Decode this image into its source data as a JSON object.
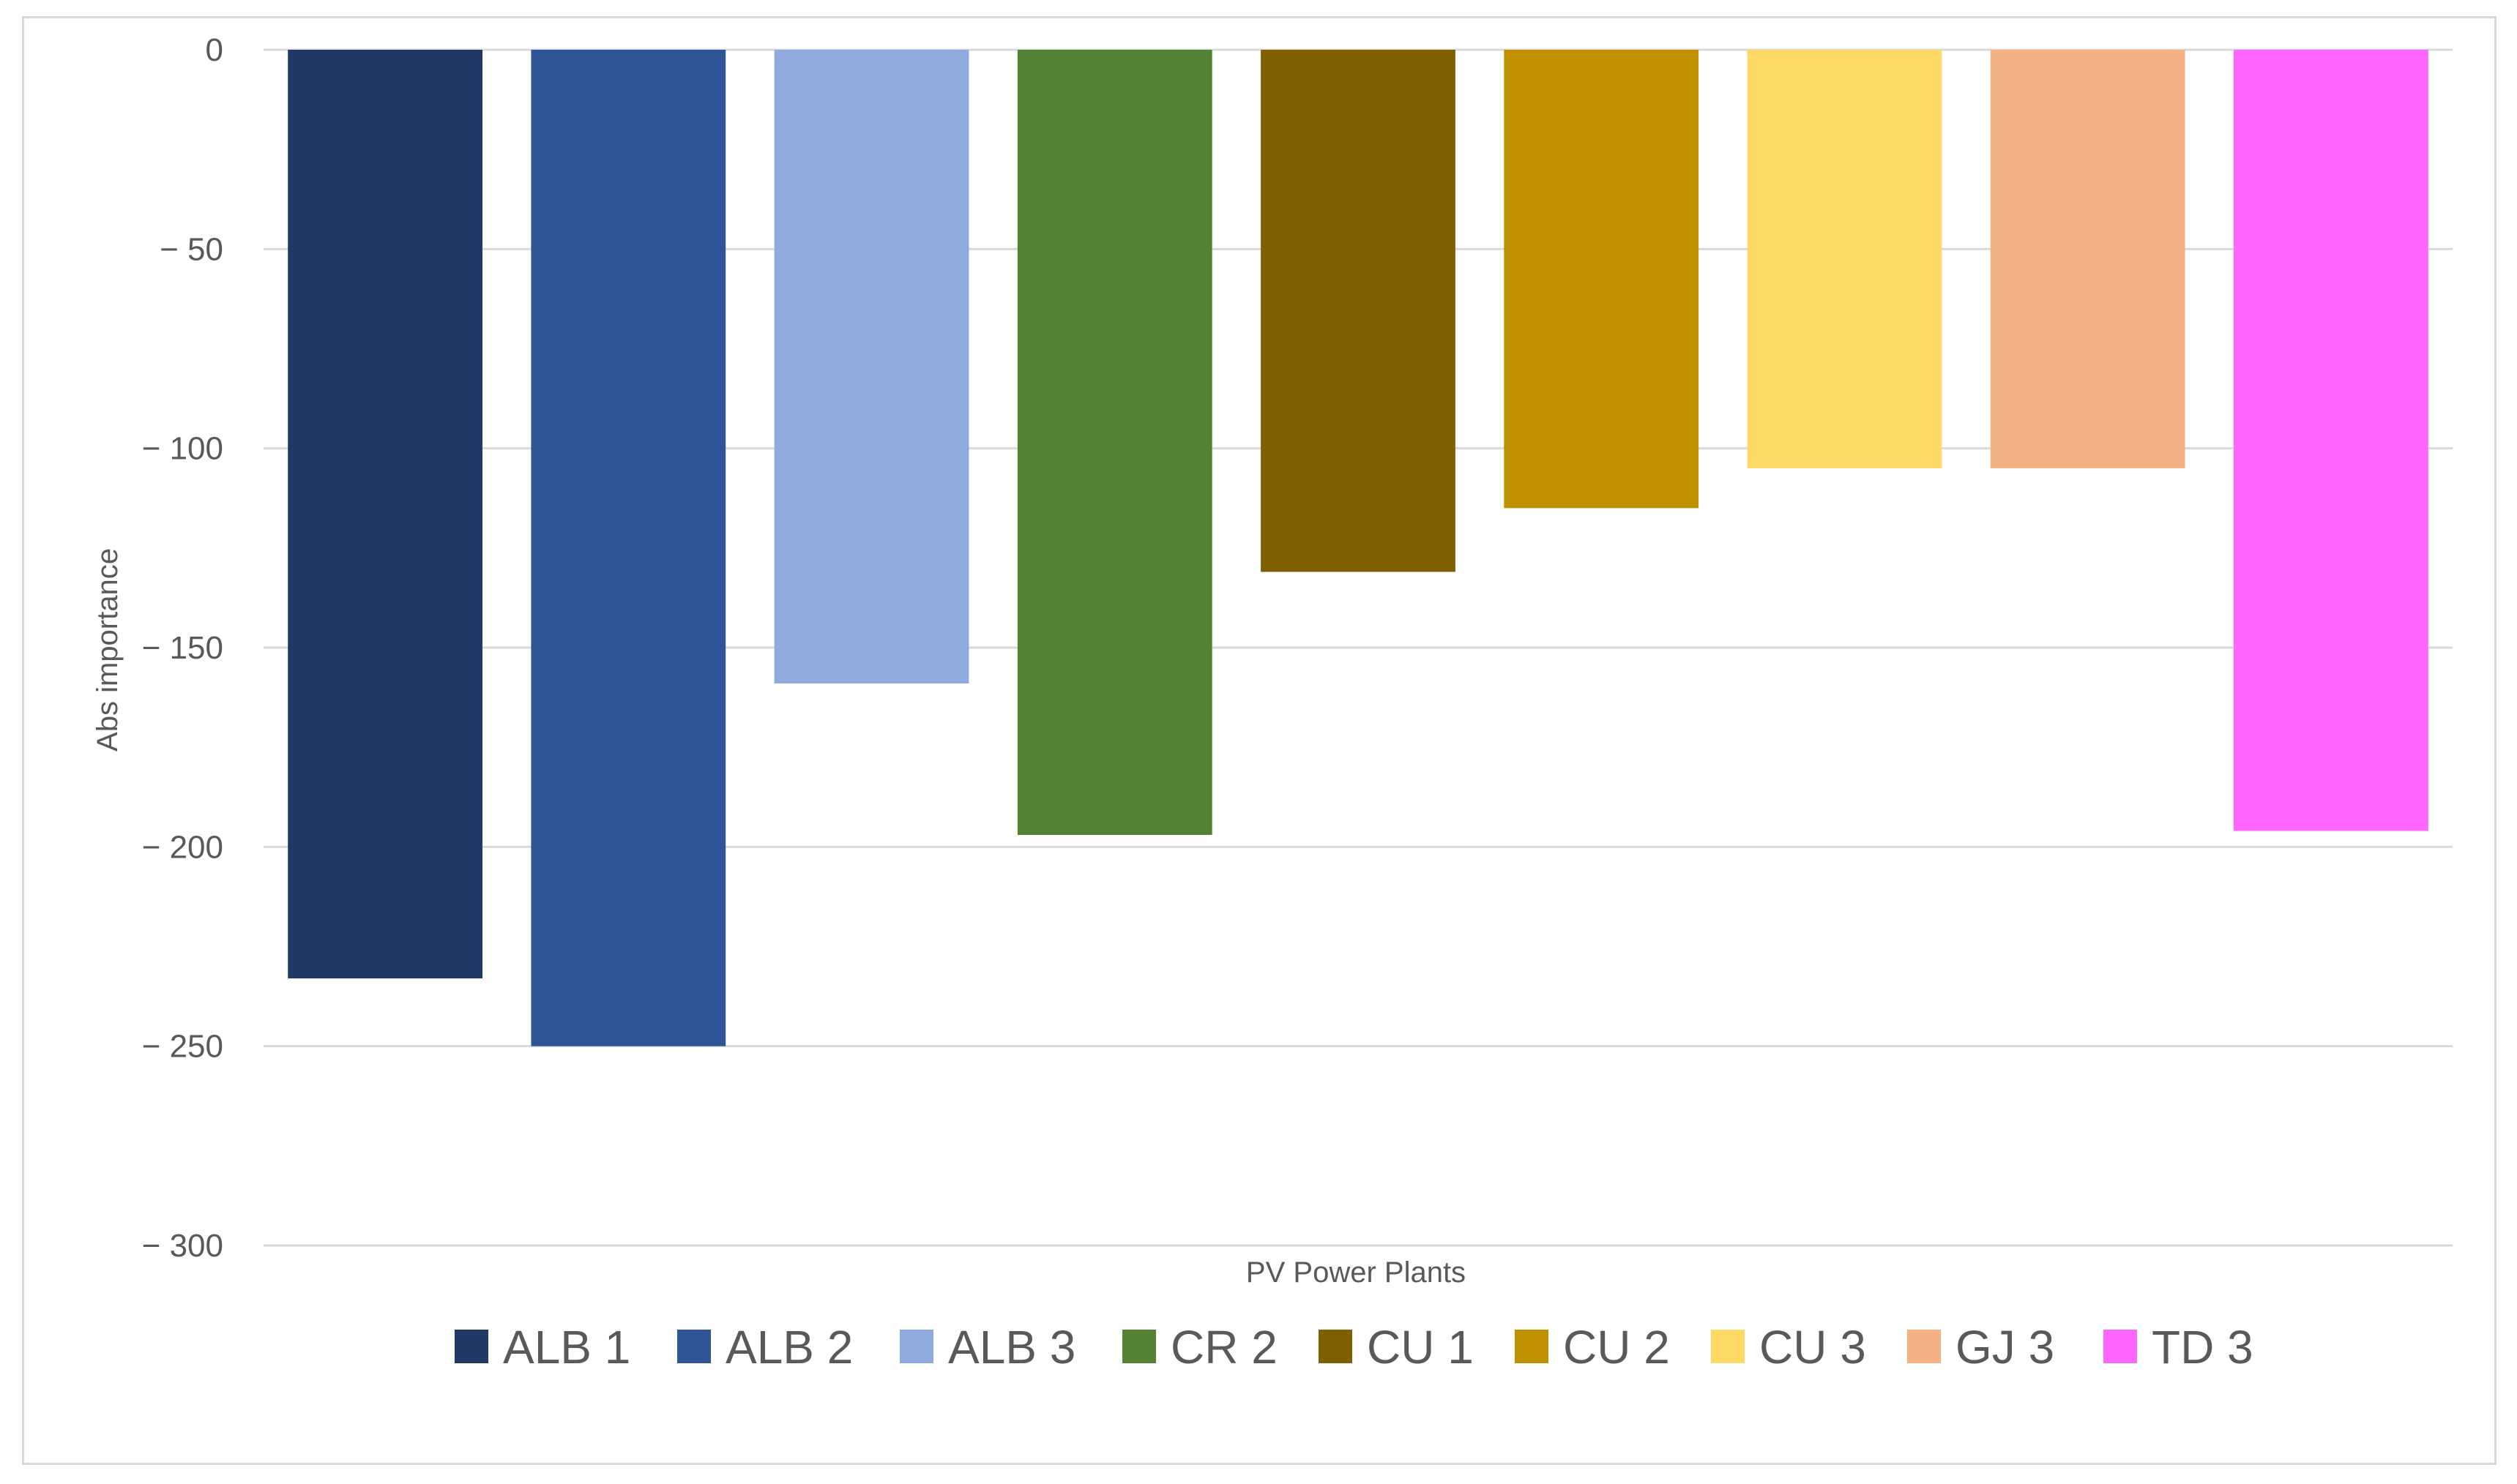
{
  "chart_data": {
    "type": "bar",
    "title": "",
    "xlabel": "PV Power Plants",
    "ylabel": "Abs importance",
    "ylim": [
      -300,
      0
    ],
    "yticks": [
      0,
      -50,
      -100,
      -150,
      -200,
      -250,
      -300
    ],
    "ytick_labels": [
      "0",
      "− 50",
      "− 100",
      "− 150",
      "− 200",
      "− 250",
      "− 300"
    ],
    "grid": true,
    "legend_position": "bottom",
    "categories": [
      "ALB 1",
      "ALB 2",
      "ALB 3",
      "CR 2",
      "CU 1",
      "CU 2",
      "CU 3",
      "GJ 3",
      "TD 3"
    ],
    "values": [
      -233,
      -250,
      -159,
      -197,
      -131,
      -115,
      -105,
      -105,
      -196
    ],
    "colors": [
      "#1f3864",
      "#2f5597",
      "#8faadc",
      "#548235",
      "#7f6000",
      "#bf9000",
      "#ffd966",
      "#f4b183",
      "#ff66ff"
    ]
  }
}
